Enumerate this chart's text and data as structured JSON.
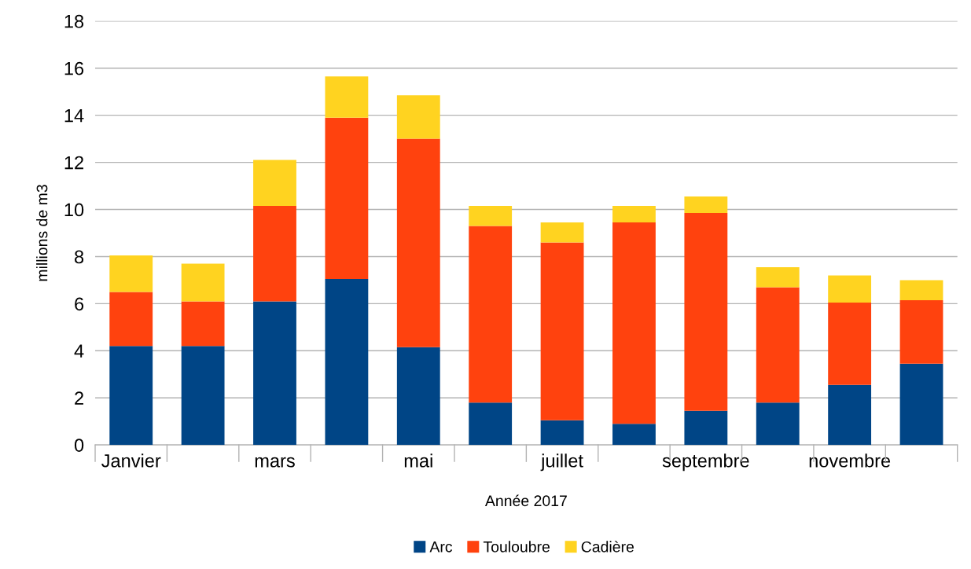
{
  "chart_data": {
    "type": "bar",
    "stacked": true,
    "xlabel": "Année 2017",
    "ylabel": "millions de m3",
    "categories": [
      "Janvier",
      null,
      "mars",
      null,
      "mai",
      null,
      "juillet",
      null,
      "septembre",
      null,
      "novembre",
      null
    ],
    "series": [
      {
        "name": "Arc",
        "color": "#004586",
        "values": [
          4.2,
          4.2,
          6.1,
          7.05,
          4.15,
          1.8,
          1.05,
          0.9,
          1.45,
          1.8,
          2.55,
          3.45
        ]
      },
      {
        "name": "Touloubre",
        "color": "#ff420e",
        "values": [
          2.3,
          1.9,
          4.05,
          6.85,
          8.85,
          7.5,
          7.55,
          8.55,
          8.4,
          4.9,
          3.5,
          2.7
        ]
      },
      {
        "name": "Cadière",
        "color": "#ffd320",
        "values": [
          1.55,
          1.6,
          1.95,
          1.75,
          1.85,
          0.85,
          0.85,
          0.7,
          0.7,
          0.85,
          1.15,
          0.85
        ]
      }
    ],
    "ylim": [
      0,
      18
    ],
    "yticks": [
      0,
      2,
      4,
      6,
      8,
      10,
      12,
      14,
      16,
      18
    ],
    "grid": "y",
    "legend": "bottom"
  }
}
